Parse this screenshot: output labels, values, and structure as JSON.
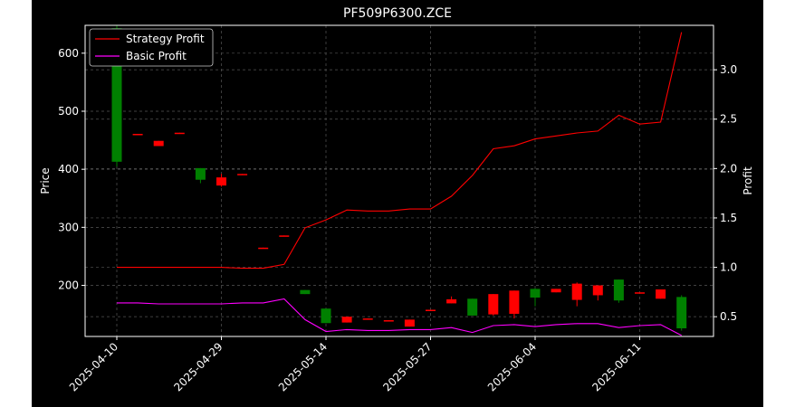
{
  "chart_data": {
    "type": "candlestick",
    "title": "PF509P6300.ZCE",
    "ylabel_left": "Price",
    "ylabel_right": "Profit",
    "ylim_left": [
      112,
      648
    ],
    "ylim_right": [
      0.3,
      3.45
    ],
    "yticks_left": [
      200,
      300,
      400,
      500,
      600
    ],
    "yticks_right": [
      0.5,
      1.0,
      1.5,
      2.0,
      2.5,
      3.0
    ],
    "grid": true,
    "legend_position": "top-left",
    "x_tick_labels": [
      {
        "index": 0,
        "label": "2025-04-10"
      },
      {
        "index": 5,
        "label": "2025-04-29"
      },
      {
        "index": 10,
        "label": "2025-05-14"
      },
      {
        "index": 15,
        "label": "2025-05-27"
      },
      {
        "index": 20,
        "label": "2025-06-04"
      },
      {
        "index": 25,
        "label": "2025-06-11"
      }
    ],
    "candles": [
      {
        "i": 0,
        "open": 413,
        "close": 643,
        "high": 648,
        "low": 405
      },
      {
        "i": 1,
        "open": 461,
        "close": 460,
        "high": 461,
        "low": 460
      },
      {
        "i": 2,
        "open": 449,
        "close": 440,
        "high": 449,
        "low": 440
      },
      {
        "i": 3,
        "open": 463,
        "close": 462,
        "high": 463,
        "low": 462
      },
      {
        "i": 4,
        "open": 382,
        "close": 402,
        "high": 402,
        "low": 376
      },
      {
        "i": 5,
        "open": 386,
        "close": 372,
        "high": 392,
        "low": 370
      },
      {
        "i": 6,
        "open": 392,
        "close": 391,
        "high": 392,
        "low": 391
      },
      {
        "i": 7,
        "open": 265,
        "close": 264,
        "high": 265,
        "low": 264
      },
      {
        "i": 8,
        "open": 286,
        "close": 285,
        "high": 286,
        "low": 285
      },
      {
        "i": 9,
        "open": 185,
        "close": 192,
        "high": 192,
        "low": 185
      },
      {
        "i": 10,
        "open": 135,
        "close": 160,
        "high": 160,
        "low": 135
      },
      {
        "i": 11,
        "open": 146,
        "close": 136,
        "high": 146,
        "low": 136
      },
      {
        "i": 12,
        "open": 143,
        "close": 142,
        "high": 143,
        "low": 142
      },
      {
        "i": 13,
        "open": 140,
        "close": 139,
        "high": 140,
        "low": 139
      },
      {
        "i": 14,
        "open": 141,
        "close": 129,
        "high": 141,
        "low": 129
      },
      {
        "i": 15,
        "open": 158,
        "close": 157,
        "high": 158,
        "low": 157
      },
      {
        "i": 16,
        "open": 176,
        "close": 169,
        "high": 181,
        "low": 169
      },
      {
        "i": 17,
        "open": 148,
        "close": 177,
        "high": 177,
        "low": 148
      },
      {
        "i": 18,
        "open": 185,
        "close": 150,
        "high": 185,
        "low": 148
      },
      {
        "i": 19,
        "open": 191,
        "close": 151,
        "high": 191,
        "low": 143
      },
      {
        "i": 20,
        "open": 179,
        "close": 194,
        "high": 195,
        "low": 164
      },
      {
        "i": 21,
        "open": 194,
        "close": 188,
        "high": 194,
        "low": 188
      },
      {
        "i": 22,
        "open": 203,
        "close": 175,
        "high": 205,
        "low": 164
      },
      {
        "i": 23,
        "open": 200,
        "close": 183,
        "high": 200,
        "low": 174
      },
      {
        "i": 24,
        "open": 174,
        "close": 210,
        "high": 210,
        "low": 170
      },
      {
        "i": 25,
        "open": 188,
        "close": 187,
        "high": 188,
        "low": 187
      },
      {
        "i": 26,
        "open": 193,
        "close": 177,
        "high": 193,
        "low": 177
      },
      {
        "i": 27,
        "open": 126,
        "close": 180,
        "high": 183,
        "low": 122
      }
    ],
    "series": [
      {
        "name": "Strategy Profit",
        "color": "#ff0000",
        "values": [
          1.0,
          1.0,
          1.0,
          1.0,
          1.0,
          1.0,
          0.99,
          0.99,
          1.03,
          1.4,
          1.48,
          1.58,
          1.57,
          1.57,
          1.59,
          1.59,
          1.72,
          1.93,
          2.2,
          2.23,
          2.3,
          2.33,
          2.36,
          2.38,
          2.54,
          2.45,
          2.47,
          3.38
        ]
      },
      {
        "name": "Basic Profit",
        "color": "#ff00ff",
        "values": [
          0.64,
          0.64,
          0.63,
          0.63,
          0.63,
          0.63,
          0.64,
          0.64,
          0.68,
          0.47,
          0.35,
          0.37,
          0.36,
          0.36,
          0.37,
          0.37,
          0.39,
          0.34,
          0.41,
          0.42,
          0.4,
          0.42,
          0.43,
          0.43,
          0.39,
          0.41,
          0.42,
          0.31
        ]
      }
    ],
    "colors": {
      "background": "#000000",
      "up": "#008000",
      "down": "#ff0000",
      "text": "#ffffff",
      "grid": "#555555"
    }
  }
}
